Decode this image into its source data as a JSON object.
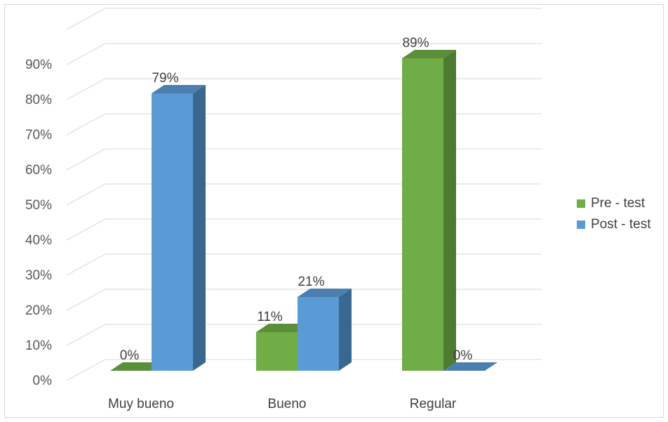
{
  "chart_data": {
    "type": "bar",
    "style": "3d-clustered-column",
    "categories": [
      "Muy bueno",
      "Bueno",
      "Regular"
    ],
    "series": [
      {
        "name": "Pre - test",
        "values": [
          0,
          11,
          89
        ],
        "labels": [
          "0%",
          "11%",
          "89%"
        ],
        "color": "#70ad47",
        "side_color": "#4e7a31",
        "top_color": "#5b8f39"
      },
      {
        "name": "Post - test",
        "values": [
          79,
          21,
          0
        ],
        "labels": [
          "79%",
          "21%",
          "0%"
        ],
        "color": "#5b9bd5",
        "side_color": "#3a6790",
        "top_color": "#4a7fb0"
      }
    ],
    "y_ticks": [
      "0%",
      "10%",
      "20%",
      "30%",
      "40%",
      "50%",
      "60%",
      "70%",
      "80%",
      "90%"
    ],
    "ylim": [
      0,
      100
    ],
    "gridlines": true,
    "legend_position": "right"
  }
}
